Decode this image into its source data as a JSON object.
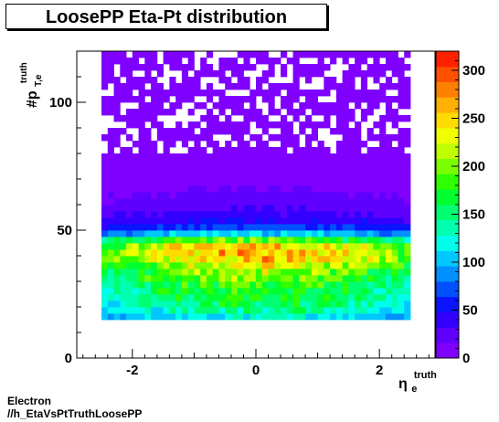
{
  "title": "LoosePP Eta-Pt distribution",
  "footer": {
    "line1": "Electron",
    "line2": "//h_EtaVsPtTruthLoosePP"
  },
  "chart_data": {
    "type": "heatmap",
    "title": "LoosePP Eta-Pt distribution",
    "xlabel": {
      "base": "η",
      "sup": "truth",
      "sub": "e"
    },
    "ylabel": {
      "base": "#p",
      "sup": "truth",
      "sub": "T,e"
    },
    "xlim": [
      -2.9,
      2.9
    ],
    "ylim": [
      0,
      120
    ],
    "zlim": [
      0,
      320
    ],
    "x_ticks": [
      -2,
      0,
      2
    ],
    "y_ticks": [
      0,
      50,
      100
    ],
    "z_ticks": [
      0,
      50,
      100,
      150,
      200,
      250,
      300
    ],
    "x_bins": {
      "min": -2.5,
      "max": 2.5,
      "count": 50
    },
    "y_bins": {
      "min": 15,
      "max": 120,
      "count": 42,
      "width": 2.5
    },
    "y_profile": [
      {
        "y": 16.25,
        "value": 125
      },
      {
        "y": 18.75,
        "value": 145
      },
      {
        "y": 21.25,
        "value": 160
      },
      {
        "y": 23.75,
        "value": 170
      },
      {
        "y": 26.25,
        "value": 180
      },
      {
        "y": 28.75,
        "value": 185
      },
      {
        "y": 31.25,
        "value": 200
      },
      {
        "y": 33.75,
        "value": 215
      },
      {
        "y": 36.25,
        "value": 235
      },
      {
        "y": 38.75,
        "value": 255
      },
      {
        "y": 41.25,
        "value": 265
      },
      {
        "y": 43.75,
        "value": 250
      },
      {
        "y": 46.25,
        "value": 185
      },
      {
        "y": 48.75,
        "value": 110
      },
      {
        "y": 51.25,
        "value": 70
      },
      {
        "y": 53.75,
        "value": 50
      },
      {
        "y": 56.25,
        "value": 38
      },
      {
        "y": 58.75,
        "value": 30
      },
      {
        "y": 61.25,
        "value": 24
      },
      {
        "y": 63.75,
        "value": 20
      },
      {
        "y": 66.25,
        "value": 16
      },
      {
        "y": 68.75,
        "value": 13
      },
      {
        "y": 71.25,
        "value": 11
      },
      {
        "y": 73.75,
        "value": 9
      },
      {
        "y": 76.25,
        "value": 8
      },
      {
        "y": 78.75,
        "value": 7
      },
      {
        "y": 81.25,
        "value": 6
      },
      {
        "y": 83.75,
        "value": 5
      },
      {
        "y": 86.25,
        "value": 5
      },
      {
        "y": 88.75,
        "value": 4
      },
      {
        "y": 91.25,
        "value": 4
      },
      {
        "y": 93.75,
        "value": 3
      },
      {
        "y": 96.25,
        "value": 3
      },
      {
        "y": 98.75,
        "value": 3
      },
      {
        "y": 101.25,
        "value": 2
      },
      {
        "y": 103.75,
        "value": 2
      },
      {
        "y": 106.25,
        "value": 2
      },
      {
        "y": 108.75,
        "value": 2
      },
      {
        "y": 111.25,
        "value": 2
      },
      {
        "y": 113.75,
        "value": 1
      },
      {
        "y": 116.25,
        "value": 1
      },
      {
        "y": 118.75,
        "value": 1
      }
    ],
    "eta_modulation": {
      "center_value": 1.0,
      "edge_value": 0.72
    },
    "grid": false,
    "colors": {
      "frame": "#000000",
      "background": "#ffffff",
      "palette": "rainbow-violet-to-red"
    }
  }
}
